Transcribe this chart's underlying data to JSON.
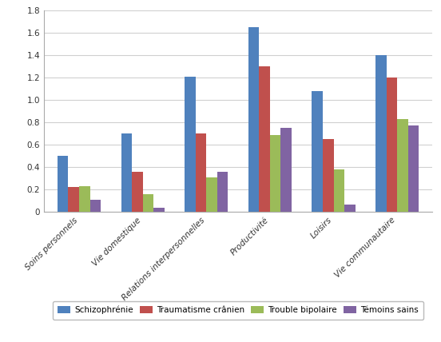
{
  "categories": [
    "Soins personnels",
    "Vie domestique",
    "Relations interpersonnelles",
    "Productivité",
    "Loisirs",
    "Vie communautaire"
  ],
  "series": {
    "Schizophrénie": [
      0.5,
      0.7,
      1.21,
      1.65,
      1.08,
      1.4
    ],
    "Traumatisme crânien": [
      0.22,
      0.36,
      0.7,
      1.3,
      0.65,
      1.2
    ],
    "Trouble bipolaire": [
      0.23,
      0.16,
      0.31,
      0.69,
      0.38,
      0.83
    ],
    "Témoins sains": [
      0.11,
      0.04,
      0.36,
      0.75,
      0.07,
      0.77
    ]
  },
  "colors": {
    "Schizophrénie": "#4F81BD",
    "Traumatisme crânien": "#C0504D",
    "Trouble bipolaire": "#9BBB59",
    "Témoins sains": "#8064A2"
  },
  "ylim": [
    0,
    1.8
  ],
  "yticks": [
    0,
    0.2,
    0.4,
    0.6,
    0.8,
    1.0,
    1.2,
    1.4,
    1.6,
    1.8
  ],
  "bar_width": 0.17,
  "legend_fontsize": 7.5,
  "tick_fontsize": 7.5,
  "background_color": "#ffffff",
  "plot_bg_color": "#ffffff",
  "grid_color": "#d0d0d0",
  "edge_color": "none"
}
